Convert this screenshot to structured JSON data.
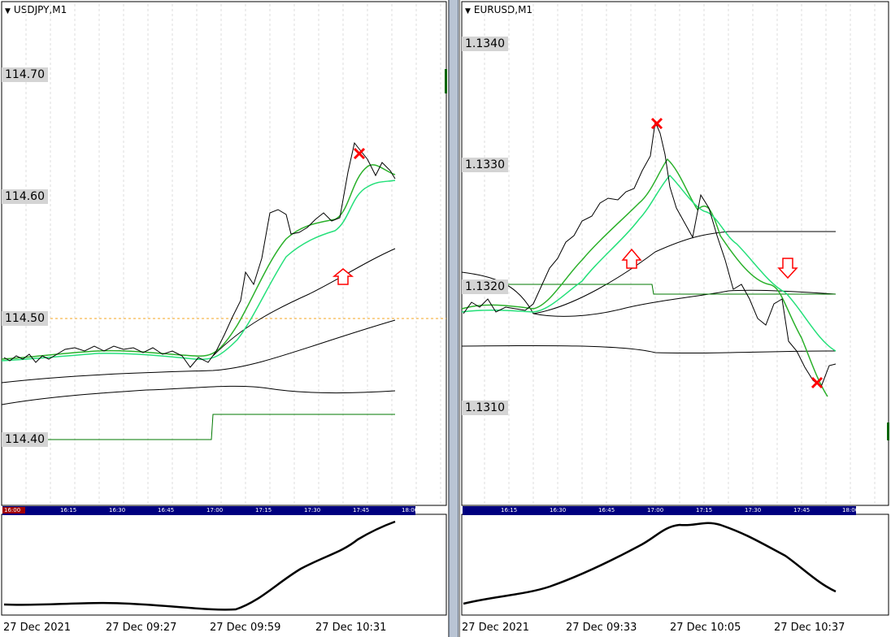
{
  "left": {
    "title": "USDJPY,M1",
    "prices": [
      "114.70",
      "114.60",
      "114.50",
      "114.40"
    ],
    "time_scale": [
      "16:00",
      "16:15",
      "16:30",
      "16:45",
      "17:00",
      "17:15",
      "17:30",
      "17:45",
      "18:00"
    ],
    "dates": [
      "27 Dec 2021",
      "27 Dec 09:27",
      "27 Dec 09:59",
      "27 Dec 10:31"
    ]
  },
  "right": {
    "title": "EURUSD,M1",
    "prices": [
      "1.1340",
      "1.1330",
      "1.1320",
      "1.1310"
    ],
    "time_scale": [
      "16:15",
      "16:30",
      "16:45",
      "17:00",
      "17:15",
      "17:30",
      "17:45",
      "18:00"
    ],
    "dates": [
      "27 Dec 2021",
      "27 Dec 09:33",
      "27 Dec 10:05",
      "27 Dec 10:37"
    ]
  },
  "colors": {
    "ma_fast": "#2ab02a",
    "ma_slow": "#25e07a",
    "arrow": "#ff0000",
    "axis_highlight": "#d4d4d4",
    "time_scale_bg": "#00007f"
  },
  "icons": {
    "title_menu": "dropdown-triangle-icon",
    "signal_up": "up-arrow-icon",
    "signal_down": "down-arrow-icon",
    "signal_exit": "x-mark-icon"
  }
}
